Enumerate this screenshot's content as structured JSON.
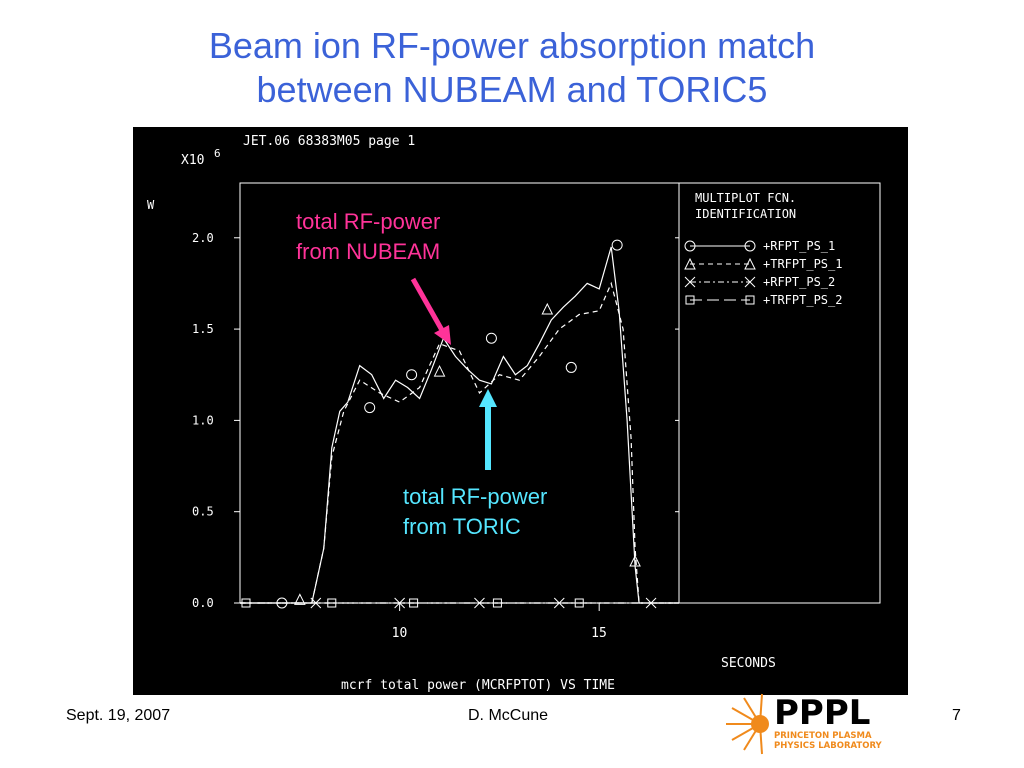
{
  "slide": {
    "title_line1": "Beam ion RF-power absorption match",
    "title_line2": "between NUBEAM and TORIC5",
    "footer_date": "Sept. 19, 2007",
    "footer_author": "D. McCune",
    "page_number": "7",
    "logo_text": "PPPL",
    "logo_subtext_1": "PRINCETON PLASMA",
    "logo_subtext_2": "PHYSICS LABORATORY"
  },
  "annotations": {
    "nubeam_line1": "total RF-power",
    "nubeam_line2": "from NUBEAM",
    "nubeam_color": "#ff3399",
    "toric_line1": "total RF-power",
    "toric_line2": "from TORIC",
    "toric_color": "#55e6ff"
  },
  "chart_data": {
    "type": "line",
    "header": "JET.06 68383M05 page 1",
    "multiplier": "X10",
    "multiplier_exp": "6",
    "ylabel": "W",
    "xlabel": "SECONDS",
    "caption": "mcrf total power (MCRFPTOT) VS TIME",
    "xlim": [
      6,
      17
    ],
    "ylim": [
      0,
      2.3
    ],
    "xticks": [
      10,
      15
    ],
    "yticks": [
      0.0,
      0.5,
      1.0,
      1.5,
      2.0
    ],
    "ytick_labels": [
      "0.0",
      "0.5",
      "1.0",
      "1.5",
      "2.0"
    ],
    "legend_title_1": "MULTIPLOT FCN.",
    "legend_title_2": "IDENTIFICATION",
    "legend_placement": "right",
    "series": [
      {
        "name": "+RFPT_PS_1",
        "marker": "circle",
        "style": "solid",
        "x": [
          6.0,
          7.8,
          8.1,
          8.3,
          8.5,
          8.7,
          9.0,
          9.3,
          9.6,
          9.9,
          10.2,
          10.5,
          10.8,
          11.1,
          11.4,
          11.7,
          12.0,
          12.3,
          12.6,
          12.9,
          13.2,
          13.5,
          13.8,
          14.1,
          14.4,
          14.7,
          15.0,
          15.3,
          15.5,
          15.7,
          15.9,
          16.0,
          17.0
        ],
        "y": [
          0.0,
          0.0,
          0.3,
          0.85,
          1.05,
          1.1,
          1.3,
          1.25,
          1.12,
          1.22,
          1.18,
          1.12,
          1.28,
          1.45,
          1.35,
          1.28,
          1.22,
          1.2,
          1.35,
          1.25,
          1.3,
          1.42,
          1.55,
          1.62,
          1.68,
          1.75,
          1.72,
          1.95,
          1.6,
          1.0,
          0.2,
          0.0,
          0.0
        ],
        "marker_x": [
          7.05,
          9.25,
          10.3,
          12.3,
          14.3,
          15.45
        ],
        "marker_y": [
          0.0,
          1.07,
          1.25,
          1.45,
          1.29,
          1.96
        ]
      },
      {
        "name": "+TRFPT_PS_1",
        "marker": "triangle",
        "style": "dashed",
        "x": [
          6.0,
          7.8,
          8.1,
          8.3,
          8.6,
          9.0,
          9.5,
          10.0,
          10.5,
          11.0,
          11.5,
          12.0,
          12.5,
          13.0,
          13.5,
          14.0,
          14.5,
          15.0,
          15.3,
          15.6,
          15.8,
          15.9,
          16.0,
          17.0
        ],
        "y": [
          0.0,
          0.0,
          0.3,
          0.8,
          1.05,
          1.22,
          1.15,
          1.1,
          1.18,
          1.42,
          1.38,
          1.15,
          1.25,
          1.22,
          1.35,
          1.5,
          1.58,
          1.6,
          1.75,
          1.5,
          0.9,
          0.3,
          0.0,
          0.0
        ],
        "marker_x": [
          7.5,
          11.0,
          13.7,
          15.9
        ],
        "marker_y": [
          0.02,
          1.27,
          1.61,
          0.23
        ]
      },
      {
        "name": "+RFPT_PS_2",
        "marker": "x",
        "style": "dashdot",
        "x": [
          6.0,
          17.0
        ],
        "y": [
          0.0,
          0.0
        ],
        "marker_x": [
          7.9,
          10.0,
          12.0,
          14.0,
          16.3
        ],
        "marker_y": [
          0.0,
          0.0,
          0.0,
          0.0,
          0.0
        ]
      },
      {
        "name": "+TRFPT_PS_2",
        "marker": "square",
        "style": "longdash",
        "x": [
          6.0,
          17.0
        ],
        "y": [
          0.0,
          0.0
        ],
        "marker_x": [
          6.15,
          8.3,
          10.35,
          12.45,
          14.5
        ],
        "marker_y": [
          0.0,
          0.0,
          0.0,
          0.0,
          0.0
        ]
      }
    ]
  }
}
